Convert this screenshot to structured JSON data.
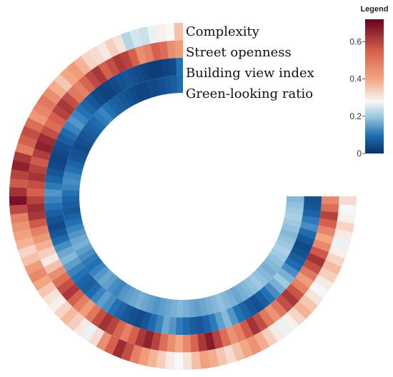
{
  "chart_data": {
    "type": "heatmap",
    "subtype": "circular-heatmap",
    "title": "",
    "color_scale": {
      "stops": [
        {
          "value": 0.0,
          "color": "#08306b"
        },
        {
          "value": 0.1,
          "color": "#2171b5"
        },
        {
          "value": 0.2,
          "color": "#9ecae1"
        },
        {
          "value": 0.28,
          "color": "#f7f7f7"
        },
        {
          "value": 0.4,
          "color": "#f4a582"
        },
        {
          "value": 0.55,
          "color": "#d6604d"
        },
        {
          "value": 0.72,
          "color": "#67001f"
        }
      ],
      "range": [
        0,
        0.72
      ]
    },
    "legend": {
      "title": "Legend",
      "position": "top-right",
      "ticks": [
        {
          "value": 0.6,
          "label": "0.6"
        },
        {
          "value": 0.4,
          "label": "0.4"
        },
        {
          "value": 0.2,
          "label": "0.2"
        },
        {
          "value": 0.0,
          "label": "0"
        }
      ]
    },
    "tracks": [
      {
        "name": "Complexity",
        "values": [
          0.36,
          0.28,
          0.29,
          0.27,
          0.24,
          0.25,
          0.22,
          0.31,
          0.34,
          0.3,
          0.32,
          0.33,
          0.38,
          0.42,
          0.4,
          0.35,
          0.39,
          0.45,
          0.5,
          0.47,
          0.43,
          0.52,
          0.58,
          0.55,
          0.49,
          0.62,
          0.66,
          0.6,
          0.56,
          0.63,
          0.69,
          0.59,
          0.48,
          0.44,
          0.41,
          0.38,
          0.33,
          0.36,
          0.42,
          0.46,
          0.4,
          0.35,
          0.31,
          0.29,
          0.33,
          0.37,
          0.34,
          0.3,
          0.27,
          0.32,
          0.45,
          0.55,
          0.64,
          0.58,
          0.48,
          0.42,
          0.38,
          0.34,
          0.3,
          0.28,
          0.31,
          0.36,
          0.41,
          0.39,
          0.35,
          0.32,
          0.36,
          0.4,
          0.44,
          0.39,
          0.34,
          0.3,
          0.27,
          0.29,
          0.33,
          0.38,
          0.35,
          0.31,
          0.28,
          0.3,
          0.34,
          0.37,
          0.33,
          0.29,
          0.27,
          0.3,
          0.33,
          0.29,
          0.28,
          0.32
        ]
      },
      {
        "name": "Street openness",
        "values": [
          0.42,
          0.45,
          0.52,
          0.55,
          0.48,
          0.45,
          0.55,
          0.6,
          0.62,
          0.58,
          0.55,
          0.62,
          0.59,
          0.54,
          0.48,
          0.5,
          0.58,
          0.62,
          0.6,
          0.55,
          0.52,
          0.58,
          0.64,
          0.66,
          0.61,
          0.56,
          0.6,
          0.63,
          0.58,
          0.55,
          0.6,
          0.64,
          0.62,
          0.56,
          0.48,
          0.43,
          0.38,
          0.34,
          0.3,
          0.36,
          0.45,
          0.52,
          0.58,
          0.62,
          0.55,
          0.48,
          0.42,
          0.5,
          0.58,
          0.63,
          0.6,
          0.54,
          0.48,
          0.55,
          0.62,
          0.66,
          0.6,
          0.52,
          0.45,
          0.4,
          0.46,
          0.54,
          0.62,
          0.67,
          0.6,
          0.52,
          0.44,
          0.48,
          0.56,
          0.63,
          0.58,
          0.5,
          0.44,
          0.5,
          0.58,
          0.62,
          0.57,
          0.48,
          0.42,
          0.5,
          0.58,
          0.63,
          0.56,
          0.46,
          0.4,
          0.47,
          0.55,
          0.6,
          0.52,
          0.46
        ]
      },
      {
        "name": "Building view index",
        "values": [
          0.1,
          0.04,
          0.03,
          0.02,
          0.02,
          0.03,
          0.04,
          0.05,
          0.06,
          0.05,
          0.04,
          0.03,
          0.03,
          0.04,
          0.06,
          0.08,
          0.1,
          0.12,
          0.14,
          0.12,
          0.09,
          0.07,
          0.05,
          0.04,
          0.03,
          0.04,
          0.06,
          0.08,
          0.11,
          0.14,
          0.12,
          0.1,
          0.07,
          0.05,
          0.04,
          0.06,
          0.09,
          0.13,
          0.16,
          0.18,
          0.15,
          0.12,
          0.1,
          0.08,
          0.07,
          0.09,
          0.12,
          0.15,
          0.13,
          0.1,
          0.08,
          0.06,
          0.05,
          0.04,
          0.06,
          0.09,
          0.12,
          0.16,
          0.14,
          0.11,
          0.09,
          0.07,
          0.06,
          0.08,
          0.11,
          0.15,
          0.18,
          0.14,
          0.1,
          0.08,
          0.06,
          0.05,
          0.07,
          0.1,
          0.13,
          0.17,
          0.2,
          0.17,
          0.13,
          0.09,
          0.07,
          0.05,
          0.04,
          0.06,
          0.09,
          0.13,
          0.11,
          0.08,
          0.06,
          0.05
        ]
      },
      {
        "name": "Green-looking ratio",
        "values": [
          0.09,
          0.07,
          0.06,
          0.05,
          0.04,
          0.04,
          0.03,
          0.03,
          0.04,
          0.05,
          0.06,
          0.07,
          0.08,
          0.1,
          0.12,
          0.11,
          0.09,
          0.08,
          0.07,
          0.06,
          0.05,
          0.04,
          0.05,
          0.06,
          0.08,
          0.1,
          0.12,
          0.13,
          0.12,
          0.1,
          0.08,
          0.07,
          0.06,
          0.08,
          0.1,
          0.12,
          0.14,
          0.16,
          0.17,
          0.15,
          0.13,
          0.11,
          0.1,
          0.12,
          0.14,
          0.16,
          0.15,
          0.13,
          0.12,
          0.14,
          0.15,
          0.16,
          0.17,
          0.16,
          0.15,
          0.14,
          0.15,
          0.16,
          0.17,
          0.18,
          0.17,
          0.16,
          0.15,
          0.16,
          0.17,
          0.18,
          0.19,
          0.18,
          0.17,
          0.16,
          0.17,
          0.18,
          0.19,
          0.2,
          0.19,
          0.18,
          0.17,
          0.18,
          0.19,
          0.2,
          0.21,
          0.2,
          0.19,
          0.18,
          0.19,
          0.2,
          0.21,
          0.2,
          0.19,
          0.18
        ]
      }
    ]
  }
}
